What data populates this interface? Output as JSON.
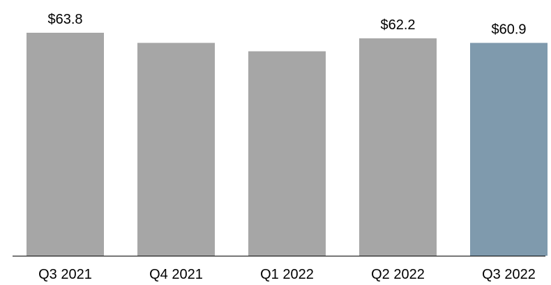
{
  "chart_data": {
    "type": "bar",
    "title": "",
    "xlabel": "",
    "ylabel": "",
    "categories": [
      "Q3 2021",
      "Q4 2021",
      "Q1 2022",
      "Q2 2022",
      "Q3 2022"
    ],
    "values": [
      63.8,
      60.9,
      58.5,
      62.2,
      60.9
    ],
    "data_labels": [
      "$63.8",
      "",
      "",
      "$62.2",
      "$60.9"
    ],
    "bar_colors": [
      "#a6a6a6",
      "#a6a6a6",
      "#a6a6a6",
      "#a6a6a6",
      "#7f9aad"
    ],
    "axis_color": "#000000",
    "ylim": [
      0,
      63.8
    ],
    "grid": false,
    "legend": "none"
  }
}
